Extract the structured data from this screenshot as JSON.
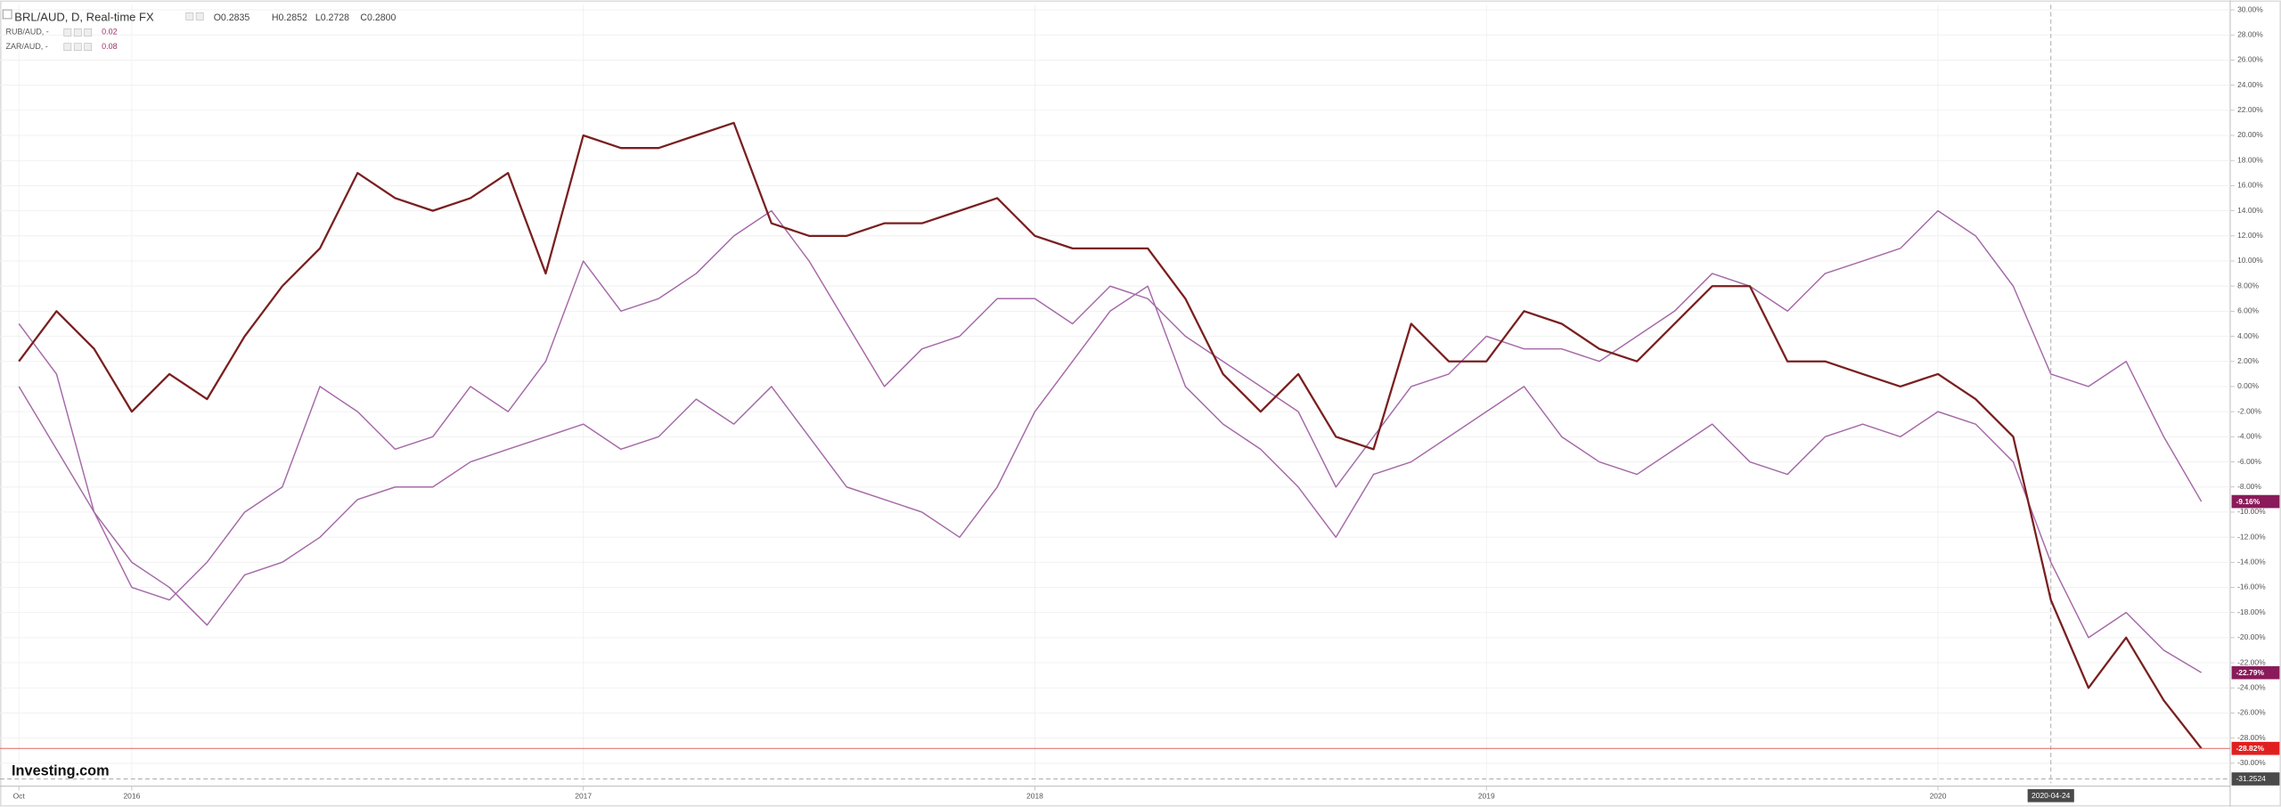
{
  "chart_data": {
    "type": "line",
    "header_values": [
      "O0.2835",
      "H0.2852",
      "L0.2728",
      "C0.2800"
    ],
    "brand": "Investing.com",
    "categories": [
      "Oct",
      null,
      null,
      "2016",
      null,
      null,
      null,
      null,
      null,
      null,
      null,
      null,
      null,
      null,
      null,
      "2017",
      null,
      null,
      null,
      null,
      null,
      null,
      null,
      null,
      null,
      null,
      null,
      "2018",
      null,
      null,
      null,
      null,
      null,
      null,
      null,
      null,
      null,
      null,
      null,
      "2019",
      null,
      null,
      null,
      null,
      null,
      null,
      null,
      null,
      null,
      null,
      null,
      "2020",
      null,
      null,
      "2020-04-24",
      null,
      null,
      null,
      null
    ],
    "crosshair_y": -31.2524,
    "series": [
      {
        "name": "BRL/AUD, D, Real-time FX",
        "color": "#7a1f1f",
        "values": [
          2,
          6,
          3,
          -2,
          1,
          -1,
          4,
          8,
          11,
          17,
          15,
          14,
          15,
          17,
          9,
          20,
          19,
          19,
          20,
          21,
          13,
          12,
          12,
          13,
          13,
          14,
          15,
          12,
          11,
          11,
          11,
          7,
          1,
          -2,
          1,
          -4,
          -5,
          5,
          2,
          2,
          6,
          5,
          3,
          2,
          5,
          8,
          8,
          2,
          2,
          1,
          0,
          1,
          -1,
          -4,
          -17,
          -24,
          -20,
          -25,
          -28.82
        ],
        "value_labels": [
          null,
          null,
          null,
          null,
          null,
          null,
          null,
          null,
          null,
          null,
          null,
          null,
          null,
          null,
          null,
          null,
          null,
          null,
          null,
          null,
          null,
          null,
          null,
          null,
          null,
          null,
          null,
          null,
          null,
          null,
          null,
          null,
          null,
          null,
          null,
          null,
          null,
          null,
          null,
          null,
          null,
          null,
          null,
          null,
          null,
          null,
          null,
          null,
          null,
          null,
          null,
          null,
          null,
          null,
          null,
          null,
          null,
          null,
          "-28.82%"
        ]
      },
      {
        "name": "RUB/AUD, -",
        "legend_value": "0.02",
        "color": "#a56aa8",
        "values": [
          5,
          1,
          -10,
          -16,
          -17,
          -14,
          -10,
          -8,
          0,
          -2,
          -5,
          -4,
          0,
          -2,
          2,
          10,
          6,
          7,
          9,
          12,
          14,
          10,
          5,
          0,
          3,
          4,
          7,
          7,
          5,
          8,
          7,
          4,
          2,
          0,
          -2,
          -8,
          -4,
          0,
          1,
          4,
          3,
          3,
          2,
          4,
          6,
          9,
          8,
          6,
          9,
          10,
          11,
          14,
          12,
          8,
          1,
          0,
          2,
          -4,
          -9.16
        ],
        "value_labels": [
          null,
          null,
          null,
          null,
          null,
          null,
          null,
          null,
          null,
          null,
          null,
          null,
          null,
          null,
          null,
          null,
          null,
          null,
          null,
          null,
          null,
          null,
          null,
          null,
          null,
          null,
          null,
          null,
          null,
          null,
          null,
          null,
          null,
          null,
          null,
          null,
          null,
          null,
          null,
          null,
          null,
          null,
          null,
          null,
          null,
          null,
          null,
          null,
          null,
          null,
          null,
          null,
          null,
          null,
          null,
          null,
          null,
          null,
          "-9.16%"
        ]
      },
      {
        "name": "ZAR/AUD, -",
        "legend_value": "0.08",
        "color": "#a56aa8",
        "values": [
          0,
          -5,
          -10,
          -14,
          -16,
          -19,
          -15,
          -14,
          -12,
          -9,
          -8,
          -8,
          -6,
          -5,
          -4,
          -3,
          -5,
          -4,
          -1,
          -3,
          0,
          -4,
          -8,
          -9,
          -10,
          -12,
          -8,
          -2,
          2,
          6,
          8,
          0,
          -3,
          -5,
          -8,
          -12,
          -7,
          -6,
          -4,
          -2,
          0,
          -4,
          -6,
          -7,
          -5,
          -3,
          -6,
          -7,
          -4,
          -3,
          -4,
          -2,
          -3,
          -6,
          -14,
          -20,
          -18,
          -21,
          -22.79
        ],
        "value_labels": [
          null,
          null,
          null,
          null,
          null,
          null,
          null,
          null,
          null,
          null,
          null,
          null,
          null,
          null,
          null,
          null,
          null,
          null,
          null,
          null,
          null,
          null,
          null,
          null,
          null,
          null,
          null,
          null,
          null,
          null,
          null,
          null,
          null,
          null,
          null,
          null,
          null,
          null,
          null,
          null,
          null,
          null,
          null,
          null,
          null,
          null,
          null,
          null,
          null,
          null,
          null,
          null,
          null,
          null,
          null,
          null,
          null,
          null,
          "-22.79%"
        ]
      }
    ],
    "ylim": [
      -31.6,
      30.4
    ],
    "yticks": [
      {
        "value": 30,
        "label": "30.00%"
      },
      {
        "value": 28,
        "label": "28.00%"
      },
      {
        "value": 26,
        "label": "26.00%"
      },
      {
        "value": 24,
        "label": "24.00%"
      },
      {
        "value": 22,
        "label": "22.00%"
      },
      {
        "value": 20,
        "label": "20.00%"
      },
      {
        "value": 18,
        "label": "18.00%"
      },
      {
        "value": 16,
        "label": "16.00%"
      },
      {
        "value": 14,
        "label": "14.00%"
      },
      {
        "value": 12,
        "label": "12.00%"
      },
      {
        "value": 10,
        "label": "10.00%"
      },
      {
        "value": 8,
        "label": "8.00%"
      },
      {
        "value": 6,
        "label": "6.00%"
      },
      {
        "value": 4,
        "label": "4.00%"
      },
      {
        "value": 2,
        "label": "2.00%"
      },
      {
        "value": 0,
        "label": "0.00%"
      },
      {
        "value": -2,
        "label": "-2.00%"
      },
      {
        "value": -4,
        "label": "-4.00%"
      },
      {
        "value": -6,
        "label": "-6.00%"
      },
      {
        "value": -8,
        "label": "-8.00%"
      },
      {
        "value": -10,
        "label": "-10.00%"
      },
      {
        "value": -12,
        "label": "-12.00%"
      },
      {
        "value": -14,
        "label": "-14.00%"
      },
      {
        "value": -16,
        "label": "-16.00%"
      },
      {
        "value": -18,
        "label": "-18.00%"
      },
      {
        "value": -20,
        "label": "-20.00%"
      },
      {
        "value": -22,
        "label": "-22.00%"
      },
      {
        "value": -24,
        "label": "-24.00%"
      },
      {
        "value": -26,
        "label": "-26.00%"
      },
      {
        "value": -28,
        "label": "-28.00%"
      },
      {
        "value": -30,
        "label": "-30.00%"
      }
    ],
    "grid": true
  }
}
